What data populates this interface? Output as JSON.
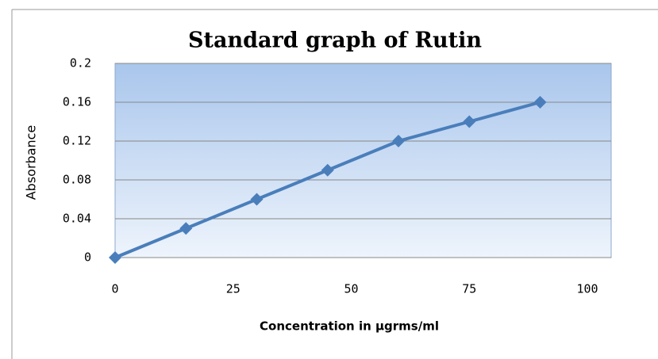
{
  "chart_data": {
    "type": "line",
    "title": "Standard graph of Rutin",
    "x_label": "Concentration in µgrms/ml",
    "y_label": "Absorbance",
    "x": [
      0,
      15,
      30,
      45,
      60,
      75,
      90
    ],
    "series": [
      {
        "name": "Absorbance",
        "color": "#4a7ebb",
        "values": [
          0,
          0.03,
          0.06,
          0.09,
          0.12,
          0.14,
          0.16
        ]
      }
    ],
    "xlim": [
      0,
      100
    ],
    "xticks": [
      0,
      25,
      50,
      75,
      100
    ],
    "ylim": [
      0,
      0.2
    ],
    "yticks": [
      0,
      0.04,
      0.08,
      0.12,
      0.16,
      0.2
    ],
    "grid": true,
    "legend": false
  }
}
